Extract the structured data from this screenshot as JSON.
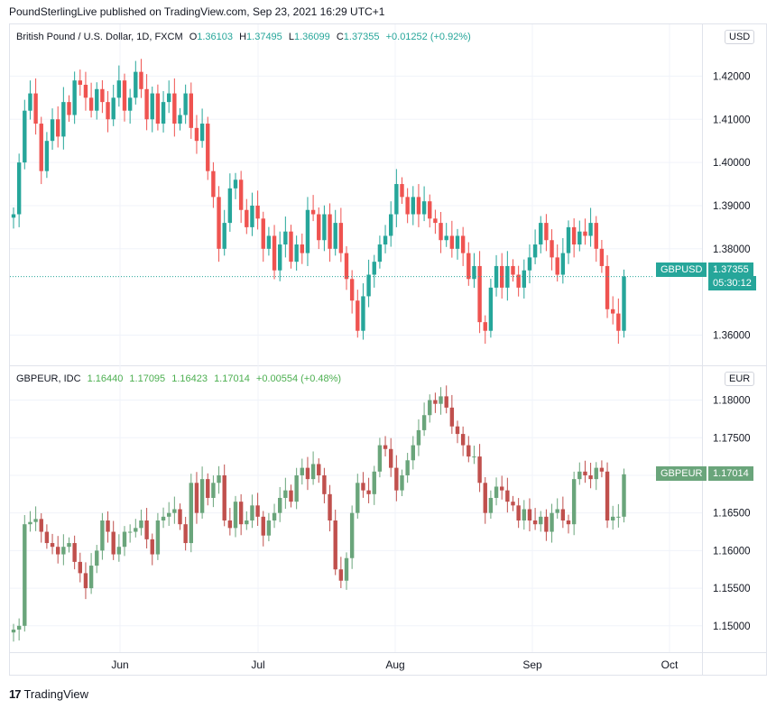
{
  "header": {
    "text": "PoundSterlingLive published on TradingView.com, Sep 23, 2021 16:29 UTC+1"
  },
  "footer": {
    "brand": "TradingView",
    "logo_glyph": "17"
  },
  "colors": {
    "up_top": "#26a69a",
    "down_top": "#ef5350",
    "up_bottom": "#6aa57b",
    "down_bottom": "#c0504d",
    "grid": "#f0f3fa",
    "axis_text": "#131722"
  },
  "pane_top": {
    "title": "British Pound / U.S. Dollar, 1D, FXCM",
    "o_label": "O",
    "o_value": "1.36103",
    "h_label": "H",
    "h_value": "1.37495",
    "l_label": "L",
    "l_value": "1.36099",
    "c_label": "C",
    "c_value": "1.37355",
    "change": "+0.01252 (+0.92%)",
    "currency": "USD",
    "symbol_tag": "GBPUSD",
    "last_price": "1.37355",
    "countdown": "05:30:12"
  },
  "pane_bottom": {
    "title": "GBPEUR, IDC",
    "o_value": "1.16440",
    "h_value": "1.17095",
    "l_value": "1.16423",
    "c_value": "1.17014",
    "change": "+0.00554 (+0.48%)",
    "currency": "EUR",
    "symbol_tag": "GBPEUR",
    "last_price": "1.17014"
  },
  "chart_data": [
    {
      "type": "candlestick",
      "symbol": "GBPUSD",
      "timeframe": "1D",
      "y_ticks": [
        "1.42000",
        "1.41000",
        "1.40000",
        "1.39000",
        "1.38000",
        "1.36000"
      ],
      "ylim": [
        1.353,
        1.432
      ],
      "last_close": 1.37355,
      "closes": [
        1.388,
        1.4,
        1.412,
        1.416,
        1.409,
        1.398,
        1.405,
        1.41,
        1.406,
        1.414,
        1.411,
        1.419,
        1.418,
        1.415,
        1.412,
        1.417,
        1.414,
        1.41,
        1.415,
        1.419,
        1.412,
        1.415,
        1.421,
        1.417,
        1.41,
        1.416,
        1.409,
        1.414,
        1.416,
        1.409,
        1.411,
        1.416,
        1.408,
        1.405,
        1.409,
        1.398,
        1.392,
        1.38,
        1.386,
        1.394,
        1.396,
        1.389,
        1.385,
        1.39,
        1.387,
        1.38,
        1.383,
        1.375,
        1.381,
        1.384,
        1.377,
        1.381,
        1.379,
        1.389,
        1.388,
        1.382,
        1.388,
        1.38,
        1.386,
        1.379,
        1.373,
        1.368,
        1.361,
        1.369,
        1.374,
        1.377,
        1.381,
        1.383,
        1.388,
        1.395,
        1.392,
        1.388,
        1.392,
        1.388,
        1.391,
        1.387,
        1.386,
        1.382,
        1.383,
        1.38,
        1.383,
        1.379,
        1.373,
        1.376,
        1.363,
        1.361,
        1.371,
        1.376,
        1.371,
        1.376,
        1.374,
        1.371,
        1.375,
        1.378,
        1.381,
        1.386,
        1.382,
        1.378,
        1.374,
        1.379,
        1.385,
        1.381,
        1.384,
        1.383,
        1.386,
        1.38,
        1.376,
        1.366,
        1.365,
        1.361,
        1.3736
      ]
    },
    {
      "type": "candlestick",
      "symbol": "GBPEUR",
      "timeframe": "1D",
      "y_ticks": [
        "1.18000",
        "1.17500",
        "1.17000",
        "1.16500",
        "1.16000",
        "1.15500",
        "1.15000"
      ],
      "ylim": [
        1.1465,
        1.1845
      ],
      "last_close": 1.17014,
      "x_ticks": [
        "Jun",
        "Jul",
        "Aug",
        "Sep",
        "Oct"
      ],
      "closes": [
        1.1495,
        1.15,
        1.1635,
        1.1638,
        1.1642,
        1.1625,
        1.161,
        1.1605,
        1.1595,
        1.1605,
        1.161,
        1.1585,
        1.157,
        1.155,
        1.158,
        1.16,
        1.164,
        1.1625,
        1.1595,
        1.1605,
        1.1625,
        1.1625,
        1.163,
        1.164,
        1.1615,
        1.1595,
        1.164,
        1.1645,
        1.165,
        1.1655,
        1.1635,
        1.161,
        1.169,
        1.165,
        1.1695,
        1.167,
        1.169,
        1.17,
        1.164,
        1.163,
        1.1665,
        1.1635,
        1.164,
        1.166,
        1.1645,
        1.162,
        1.164,
        1.165,
        1.167,
        1.168,
        1.1665,
        1.17,
        1.171,
        1.1695,
        1.1715,
        1.17,
        1.1675,
        1.164,
        1.1575,
        1.156,
        1.159,
        1.165,
        1.169,
        1.168,
        1.1675,
        1.1705,
        1.174,
        1.1735,
        1.171,
        1.168,
        1.17,
        1.172,
        1.174,
        1.176,
        1.178,
        1.18,
        1.1795,
        1.1805,
        1.179,
        1.1765,
        1.1755,
        1.174,
        1.1725,
        1.1725,
        1.169,
        1.165,
        1.167,
        1.1685,
        1.168,
        1.1665,
        1.166,
        1.164,
        1.1655,
        1.164,
        1.1635,
        1.1645,
        1.1625,
        1.165,
        1.1655,
        1.164,
        1.1635,
        1.1695,
        1.1705,
        1.17,
        1.1695,
        1.171,
        1.1705,
        1.164,
        1.1645,
        1.1645,
        1.17014
      ]
    }
  ]
}
